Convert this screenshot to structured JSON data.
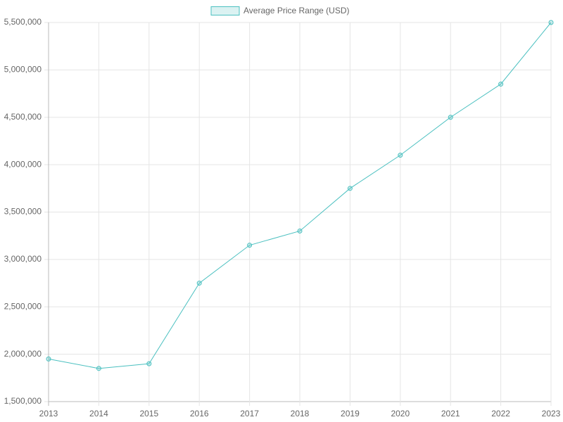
{
  "chart_data": {
    "type": "line",
    "categories": [
      "2013",
      "2014",
      "2015",
      "2016",
      "2017",
      "2018",
      "2019",
      "2020",
      "2021",
      "2022",
      "2023"
    ],
    "series": [
      {
        "name": "Average Price Range (USD)",
        "color": "#4bc0c0",
        "values": [
          1950000,
          1850000,
          1900000,
          2750000,
          3150000,
          3300000,
          3750000,
          4100000,
          4500000,
          4850000,
          5500000
        ]
      }
    ],
    "ylim": [
      1500000,
      5500000
    ],
    "yticks": [
      {
        "value": 1500000,
        "label": "1,500,000"
      },
      {
        "value": 2000000,
        "label": "2,000,000"
      },
      {
        "value": 2500000,
        "label": "2,500,000"
      },
      {
        "value": 3000000,
        "label": "3,000,000"
      },
      {
        "value": 3500000,
        "label": "3,500,000"
      },
      {
        "value": 4000000,
        "label": "4,000,000"
      },
      {
        "value": 4500000,
        "label": "4,500,000"
      },
      {
        "value": 5000000,
        "label": "5,000,000"
      },
      {
        "value": 5500000,
        "label": "5,500,000"
      }
    ],
    "grid": true,
    "legend": "top"
  }
}
